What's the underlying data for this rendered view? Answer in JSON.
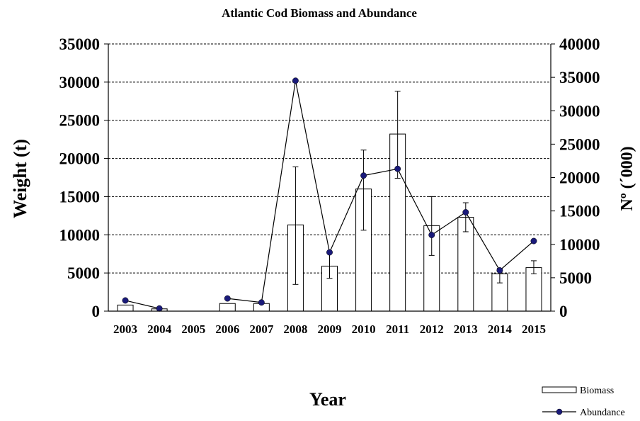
{
  "chart_data": {
    "type": "bar",
    "title": "Atlantic Cod Biomass and Abundance",
    "xlabel": "Year",
    "ylabel": "Weight (t)",
    "y2label": "Nº (´000)",
    "categories": [
      "2003",
      "2004",
      "2005",
      "2006",
      "2007",
      "2008",
      "2009",
      "2010",
      "2011",
      "2012",
      "2013",
      "2014",
      "2015"
    ],
    "ylim": [
      0,
      35000
    ],
    "y2lim": [
      0,
      40000
    ],
    "yticks": [
      "0",
      "5000",
      "10000",
      "15000",
      "20000",
      "25000",
      "30000",
      "35000"
    ],
    "y2ticks": [
      "0",
      "5000",
      "10000",
      "15000",
      "20000",
      "25000",
      "30000",
      "35000",
      "40000"
    ],
    "grid": true,
    "legend_position": "bottom-right",
    "series": [
      {
        "name": "Biomass",
        "kind": "bar",
        "axis": "left",
        "values": [
          800,
          300,
          null,
          1000,
          1000,
          11300,
          5900,
          16000,
          23200,
          11200,
          12300,
          4900,
          5700
        ],
        "error_low": [
          null,
          null,
          null,
          null,
          null,
          3500,
          4300,
          10600,
          17400,
          7300,
          10400,
          3700,
          4900
        ],
        "error_high": [
          null,
          null,
          null,
          null,
          null,
          18900,
          7600,
          21100,
          28800,
          15000,
          14200,
          5600,
          6600
        ]
      },
      {
        "name": "Abundance",
        "kind": "line",
        "axis": "right",
        "values": [
          1600,
          400,
          null,
          1900,
          1300,
          34500,
          8800,
          20300,
          21300,
          11400,
          14800,
          6100,
          10500
        ]
      }
    ]
  }
}
